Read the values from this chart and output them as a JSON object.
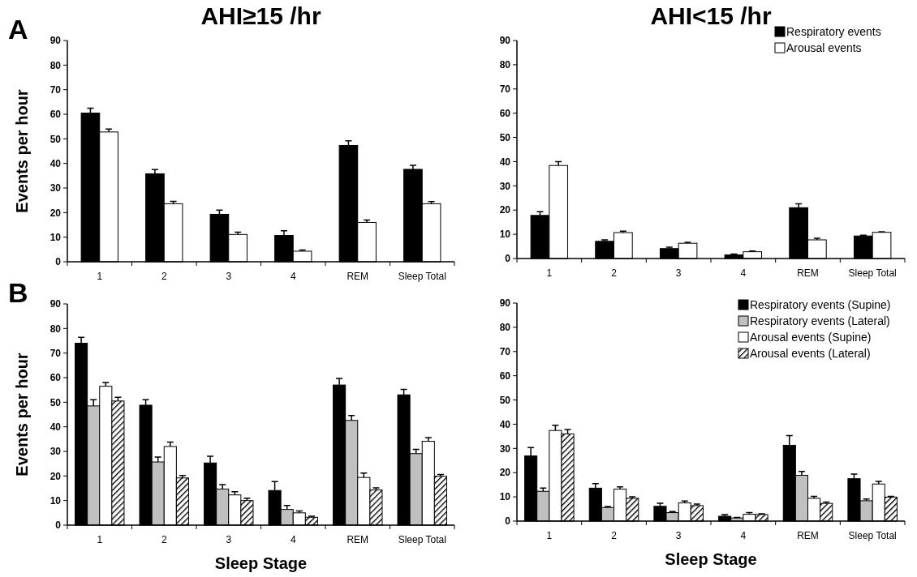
{
  "chart_data": [
    {
      "type": "bar",
      "title": "AHI≥15 /hr",
      "ylabel": "Events per hour",
      "annotations": [
        "A"
      ],
      "categories": [
        "1",
        "2",
        "3",
        "4",
        "REM",
        "Sleep Total"
      ],
      "ylim": [
        0,
        90
      ],
      "yticks": [
        0,
        10,
        20,
        30,
        40,
        50,
        60,
        70,
        80,
        90
      ],
      "legend": false,
      "series": [
        {
          "color": "#000000",
          "values": [
            60.5,
            35.8,
            19.3,
            10.7,
            47.3,
            37.6
          ],
          "errors": [
            [
              60.5,
              62.5
            ],
            [
              35.8,
              37.5
            ],
            [
              19.3,
              21
            ],
            [
              10.7,
              12.6
            ],
            [
              47.3,
              49.2
            ],
            [
              37.6,
              39.2
            ]
          ]
        },
        {
          "color": "#ffffff",
          "values": [
            52.8,
            23.6,
            11.1,
            4.3,
            16,
            23.6
          ],
          "errors": [
            [
              52.8,
              54
            ],
            [
              23.6,
              24.6
            ],
            [
              11.1,
              12
            ],
            [
              4.3,
              4.8
            ],
            [
              16,
              17
            ],
            [
              23.6,
              24.5
            ]
          ]
        }
      ]
    },
    {
      "type": "bar",
      "title": "AHI<15 /hr",
      "categories": [
        "1",
        "2",
        "3",
        "4",
        "REM",
        "Sleep Total"
      ],
      "ylim": [
        0,
        90
      ],
      "yticks": [
        0,
        10,
        20,
        30,
        40,
        50,
        60,
        70,
        80,
        90
      ],
      "legend": "top right",
      "series": [
        {
          "name": "Respiratory events",
          "color": "#000000",
          "values": [
            17.8,
            7.1,
            4.1,
            1.5,
            21,
            9.3
          ],
          "errors": [
            [
              17.8,
              19.3
            ],
            [
              7.1,
              7.7
            ],
            [
              4.1,
              4.7
            ],
            [
              1.5,
              1.8
            ],
            [
              21,
              22.6
            ],
            [
              9.3,
              9.6
            ]
          ]
        },
        {
          "name": "Arousal events",
          "color": "#ffffff",
          "values": [
            38.4,
            10.7,
            6.3,
            2.8,
            7.7,
            10.8
          ],
          "errors": [
            [
              38.4,
              40
            ],
            [
              10.7,
              11.3
            ],
            [
              6.3,
              6.7
            ],
            [
              2.8,
              3.1
            ],
            [
              7.7,
              8.4
            ],
            [
              10.8,
              11
            ]
          ]
        }
      ]
    },
    {
      "type": "bar",
      "ylabel": "Events per hour",
      "xlabel": "Sleep Stage",
      "annotations": [
        "B"
      ],
      "categories": [
        "1",
        "2",
        "3",
        "4",
        "REM",
        "Sleep Total"
      ],
      "ylim": [
        0,
        90
      ],
      "yticks": [
        0,
        10,
        20,
        30,
        40,
        50,
        60,
        70,
        80,
        90
      ],
      "legend": false,
      "series": [
        {
          "color": "#000000",
          "values": [
            74,
            48.8,
            25.3,
            14.1,
            57,
            53
          ],
          "errors": [
            [
              74,
              76.4
            ],
            [
              48.8,
              51
            ],
            [
              25.3,
              28
            ],
            [
              14.1,
              17.7
            ],
            [
              57,
              59.7
            ],
            [
              53,
              55.2
            ]
          ]
        },
        {
          "color": "#c0c0c0",
          "values": [
            48.5,
            25.7,
            14.7,
            6.4,
            42.6,
            29.1
          ],
          "errors": [
            [
              48.5,
              51
            ],
            [
              25.7,
              27.7
            ],
            [
              14.7,
              16.5
            ],
            [
              6.4,
              8
            ],
            [
              42.6,
              44.6
            ],
            [
              29.1,
              30.8
            ]
          ]
        },
        {
          "color": "#ffffff",
          "values": [
            56.5,
            32,
            12.3,
            5,
            19.4,
            34.1
          ],
          "errors": [
            [
              56.5,
              58
            ],
            [
              32,
              33.8
            ],
            [
              12.3,
              13.6
            ],
            [
              5,
              5.8
            ],
            [
              19.4,
              21.2
            ],
            [
              34.1,
              35.6
            ]
          ]
        },
        {
          "color": "#000000",
          "values": [
            50.5,
            19.2,
            10,
            3.2,
            14.3,
            19.9
          ],
          "errors": [
            [
              50.5,
              52
            ],
            [
              19.2,
              20.2
            ],
            [
              10,
              11
            ],
            [
              3.2,
              3.6
            ],
            [
              14.3,
              15.2
            ],
            [
              19.9,
              20.6
            ]
          ]
        }
      ]
    },
    {
      "type": "bar",
      "xlabel": "Sleep Stage",
      "categories": [
        "1",
        "2",
        "3",
        "4",
        "REM",
        "Sleep Total"
      ],
      "ylim": [
        0,
        90
      ],
      "yticks": [
        0,
        10,
        20,
        30,
        40,
        50,
        60,
        70,
        80,
        90
      ],
      "legend": "top right",
      "series": [
        {
          "name": "Respiratory events (Supine)",
          "color": "#000000",
          "values": [
            26.9,
            13.6,
            6.1,
            2,
            31.3,
            17.5
          ],
          "errors": [
            [
              26.9,
              30.4
            ],
            [
              13.6,
              15.5
            ],
            [
              6.1,
              7.4
            ],
            [
              2,
              2.7
            ],
            [
              31.3,
              35.3
            ],
            [
              17.5,
              19.4
            ]
          ]
        },
        {
          "name": "Respiratory events (Lateral)",
          "color": "#c0c0c0",
          "values": [
            12.3,
            5.6,
            3.5,
            1.3,
            18.9,
            8.4
          ],
          "errors": [
            [
              12.3,
              13.6
            ],
            [
              5.6,
              6
            ],
            [
              3.5,
              3.9
            ],
            [
              1.3,
              1.5
            ],
            [
              18.9,
              20.5
            ],
            [
              8.4,
              9.1
            ]
          ]
        },
        {
          "name": "Arousal events (Supine)",
          "color": "#ffffff",
          "values": [
            37.4,
            13.2,
            7.5,
            2.8,
            9.4,
            15.3
          ],
          "errors": [
            [
              37.4,
              39.6
            ],
            [
              13.2,
              14.1
            ],
            [
              7.5,
              8.3
            ],
            [
              2.8,
              3.5
            ],
            [
              9.4,
              10.2
            ],
            [
              15.3,
              16.4
            ]
          ]
        },
        {
          "name": "Arousal events (Lateral)",
          "color": "#000000",
          "values": [
            36,
            9.4,
            6.4,
            2.7,
            7.3,
            9.9
          ],
          "errors": [
            [
              36,
              37.8
            ],
            [
              9.4,
              10
            ],
            [
              6.4,
              7
            ],
            [
              2.7,
              3
            ],
            [
              7.3,
              7.9
            ],
            [
              9.9,
              10.2
            ]
          ]
        }
      ]
    }
  ]
}
